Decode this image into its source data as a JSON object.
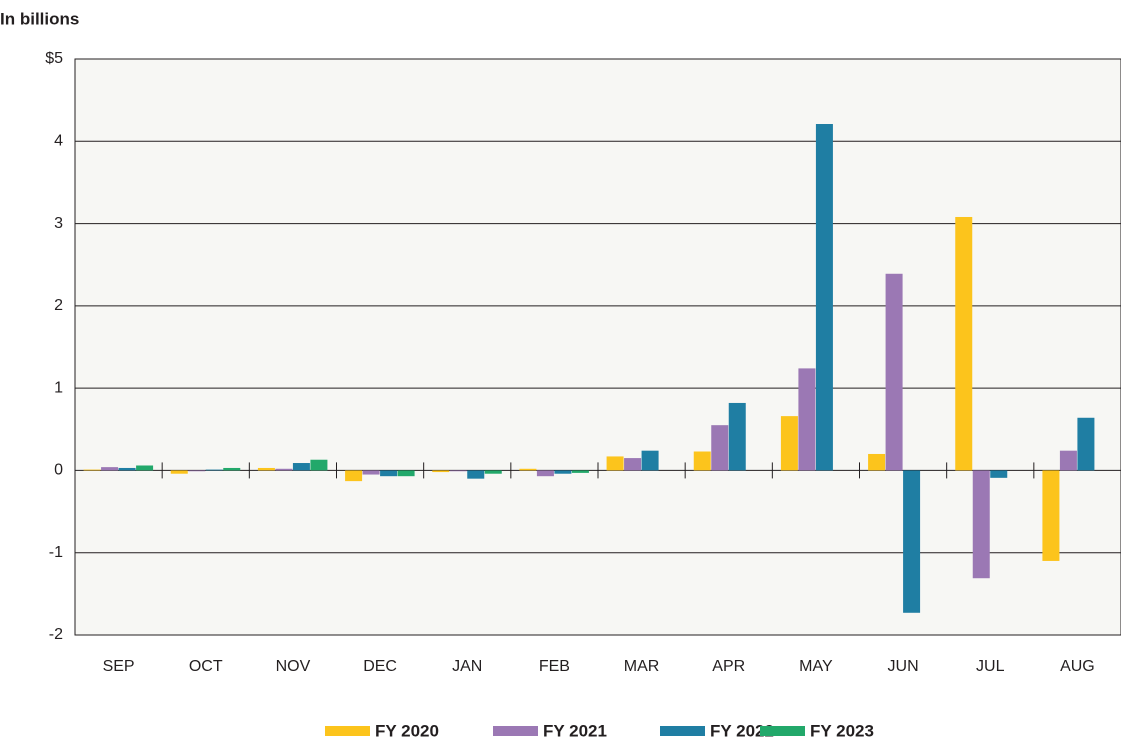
{
  "chart_data": {
    "type": "bar",
    "title": "In billions",
    "categories": [
      "SEP",
      "OCT",
      "NOV",
      "DEC",
      "JAN",
      "FEB",
      "MAR",
      "APR",
      "MAY",
      "JUN",
      "JUL",
      "AUG"
    ],
    "series": [
      {
        "name": "FY 2020",
        "color": "#fcc41c",
        "values": [
          0.01,
          -0.04,
          0.03,
          -0.13,
          -0.02,
          0.02,
          0.17,
          0.23,
          0.66,
          0.2,
          3.08,
          -1.1
        ]
      },
      {
        "name": "FY 2021",
        "color": "#9b78b4",
        "values": [
          0.04,
          -0.01,
          0.02,
          -0.05,
          -0.01,
          -0.07,
          0.15,
          0.55,
          1.24,
          2.39,
          -1.31,
          0.24
        ]
      },
      {
        "name": "FY 2022",
        "color": "#1f7ea3",
        "values": [
          0.03,
          0.01,
          0.09,
          -0.07,
          -0.1,
          -0.04,
          0.24,
          0.82,
          4.21,
          -1.73,
          -0.09,
          0.64
        ]
      },
      {
        "name": "FY 2023",
        "color": "#22a86a",
        "values": [
          0.06,
          0.03,
          0.13,
          -0.07,
          -0.04,
          -0.03,
          null,
          null,
          null,
          null,
          null,
          null
        ]
      }
    ],
    "ylim": [
      -2,
      5
    ],
    "yticks": [
      -2,
      -1,
      0,
      1,
      2,
      3,
      4,
      {
        "value": 5,
        "label": "$5"
      }
    ],
    "grid": true
  }
}
